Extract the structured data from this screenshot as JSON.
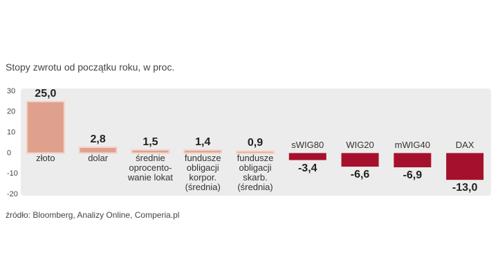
{
  "chart_data": {
    "type": "bar",
    "title": "Stopy zwrotu od początku roku, w proc.",
    "source": "źródło: Bloomberg, Analizy Online, Comperia.pl",
    "categories": [
      "złoto",
      "dolar",
      "średnie\noprocento-\nwanie lokat",
      "fundusze\nobligacji\nkorpor.\n(średnia)",
      "fundusze\nobligacji\nskarb.\n(średnia)",
      "sWIG80",
      "WIG20",
      "mWIG40",
      "DAX"
    ],
    "values": [
      25.0,
      2.8,
      1.5,
      1.4,
      0.9,
      -3.4,
      -6.6,
      -6.9,
      -13.0
    ],
    "value_labels": [
      "25,0",
      "2,8",
      "1,5",
      "1,4",
      "0,9",
      "-3,4",
      "-6,6",
      "-6,9",
      "-13,0"
    ],
    "positive_color": "#dfa18d",
    "negative_color": "#a5112c",
    "ylim": [
      -20,
      30
    ],
    "yticks": [
      -20,
      -10,
      0,
      10,
      20,
      30
    ]
  }
}
